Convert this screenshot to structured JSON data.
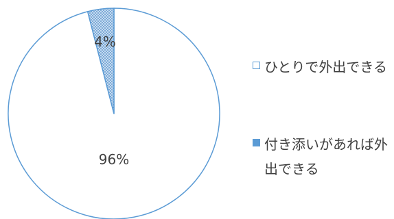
{
  "chart_data": {
    "type": "pie",
    "title": "",
    "start_angle_deg": 0,
    "direction": "clockwise",
    "slices": [
      {
        "label": "ひとりで外出できる",
        "value": 96,
        "data_label": "96%",
        "fill": "#ffffff",
        "stroke": "#5b9bd5",
        "pattern": "none"
      },
      {
        "label": "付き添いがあれば外出できる",
        "value": 4,
        "data_label": "4%",
        "fill": "#5b9bd5",
        "stroke": "#5b9bd5",
        "pattern": "dots"
      }
    ],
    "legend": {
      "placement": "right",
      "entries": [
        "ひとりで外出できる",
        "付き添いがあれば外出できる"
      ]
    }
  }
}
